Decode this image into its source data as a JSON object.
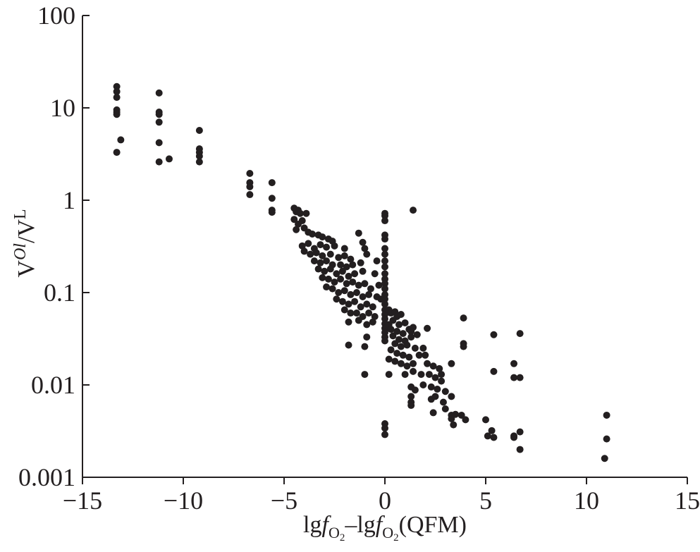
{
  "chart_data": {
    "type": "scatter",
    "title": "",
    "xlabel": "lgfO2–lgfO2(QFM)",
    "xlabel_parts": {
      "a": "lg",
      "f1": "f",
      "sub1": "O",
      "sub1n": "2",
      "dash": "–lg",
      "f2": "f",
      "sub2": "O",
      "sub2n": "2",
      "tail": "(QFM)"
    },
    "ylabel": "VOl/VL",
    "ylabel_parts": {
      "v1": "V",
      "sup1": "Ol",
      "slash": "/V",
      "sup2": "L"
    },
    "xlim": [
      -15,
      15
    ],
    "ylim": [
      0.001,
      100
    ],
    "yscale": "log",
    "grid": false,
    "legend": "none",
    "marker_color": "#231f20",
    "x_ticks": [
      -15,
      -10,
      -5,
      0,
      5,
      10,
      15
    ],
    "x_tick_labels": [
      "−15",
      "−10",
      "−5",
      "0",
      "5",
      "10",
      "15"
    ],
    "y_ticks": [
      0.001,
      0.01,
      0.1,
      1,
      10,
      100
    ],
    "y_tick_labels": [
      "0.001",
      "0.01",
      "0.1",
      "1",
      "10",
      "100"
    ],
    "points": [
      [
        -13.3,
        17.0
      ],
      [
        -13.3,
        15.0
      ],
      [
        -13.3,
        13.0
      ],
      [
        -13.3,
        9.5
      ],
      [
        -13.3,
        9.0
      ],
      [
        -13.3,
        8.5
      ],
      [
        -13.1,
        4.5
      ],
      [
        -13.3,
        3.3
      ],
      [
        -11.2,
        14.5
      ],
      [
        -11.2,
        9.0
      ],
      [
        -11.2,
        8.5
      ],
      [
        -11.2,
        7.0
      ],
      [
        -11.2,
        4.2
      ],
      [
        -11.2,
        2.6
      ],
      [
        -10.7,
        2.8
      ],
      [
        -9.2,
        5.7
      ],
      [
        -9.2,
        3.6
      ],
      [
        -9.2,
        3.3
      ],
      [
        -9.2,
        3.0
      ],
      [
        -9.2,
        2.6
      ],
      [
        -6.7,
        1.95
      ],
      [
        -6.7,
        1.55
      ],
      [
        -6.7,
        1.4
      ],
      [
        -6.7,
        1.15
      ],
      [
        -5.6,
        1.55
      ],
      [
        -5.6,
        1.05
      ],
      [
        -5.6,
        0.78
      ],
      [
        -5.6,
        0.74
      ],
      [
        -4.5,
        0.82
      ],
      [
        -4.4,
        0.75
      ],
      [
        -4.3,
        0.78
      ],
      [
        -4.2,
        0.72
      ],
      [
        -3.9,
        0.72
      ],
      [
        -4.5,
        0.62
      ],
      [
        -4.3,
        0.55
      ],
      [
        -4.1,
        0.6
      ],
      [
        -3.8,
        0.45
      ],
      [
        -4.4,
        0.48
      ],
      [
        -4.0,
        0.5
      ],
      [
        -3.6,
        0.43
      ],
      [
        -3.3,
        0.42
      ],
      [
        -3.1,
        0.4
      ],
      [
        -2.8,
        0.38
      ],
      [
        -2.6,
        0.36
      ],
      [
        -4.1,
        0.32
      ],
      [
        -3.8,
        0.34
      ],
      [
        -3.5,
        0.3
      ],
      [
        -3.2,
        0.33
      ],
      [
        -2.9,
        0.31
      ],
      [
        -2.5,
        0.32
      ],
      [
        -4.0,
        0.28
      ],
      [
        -3.7,
        0.26
      ],
      [
        -3.4,
        0.27
      ],
      [
        -3.1,
        0.25
      ],
      [
        -2.7,
        0.26
      ],
      [
        -2.3,
        0.24
      ],
      [
        -2.0,
        0.25
      ],
      [
        -1.7,
        0.23
      ],
      [
        -3.5,
        0.22
      ],
      [
        -3.2,
        0.21
      ],
      [
        -2.9,
        0.22
      ],
      [
        -2.6,
        0.2
      ],
      [
        -2.2,
        0.2
      ],
      [
        -1.9,
        0.19
      ],
      [
        -1.6,
        0.2
      ],
      [
        -1.2,
        0.21
      ],
      [
        -3.3,
        0.18
      ],
      [
        -3.0,
        0.17
      ],
      [
        -2.7,
        0.18
      ],
      [
        -2.4,
        0.16
      ],
      [
        -2.1,
        0.17
      ],
      [
        -1.8,
        0.15
      ],
      [
        -1.5,
        0.16
      ],
      [
        -1.1,
        0.17
      ],
      [
        -3.1,
        0.145
      ],
      [
        -2.8,
        0.14
      ],
      [
        -2.5,
        0.13
      ],
      [
        -2.2,
        0.14
      ],
      [
        -1.9,
        0.125
      ],
      [
        -1.6,
        0.13
      ],
      [
        -1.3,
        0.12
      ],
      [
        -1.0,
        0.125
      ],
      [
        -2.9,
        0.115
      ],
      [
        -2.6,
        0.11
      ],
      [
        -2.3,
        0.1
      ],
      [
        -2.0,
        0.105
      ],
      [
        -1.7,
        0.095
      ],
      [
        -1.4,
        0.1
      ],
      [
        -1.1,
        0.09
      ],
      [
        -0.8,
        0.095
      ],
      [
        -2.4,
        0.085
      ],
      [
        -2.1,
        0.08
      ],
      [
        -1.8,
        0.075
      ],
      [
        -1.5,
        0.08
      ],
      [
        -1.2,
        0.07
      ],
      [
        -0.9,
        0.075
      ],
      [
        -0.6,
        0.07
      ],
      [
        -2.0,
        0.065
      ],
      [
        -1.7,
        0.06
      ],
      [
        -1.4,
        0.06
      ],
      [
        -1.1,
        0.055
      ],
      [
        -0.8,
        0.06
      ],
      [
        -0.5,
        0.055
      ],
      [
        -1.8,
        0.048
      ],
      [
        -1.3,
        0.05
      ],
      [
        -0.9,
        0.045
      ],
      [
        -0.6,
        0.048
      ],
      [
        -1.3,
        0.44
      ],
      [
        -1.1,
        0.35
      ],
      [
        -1.0,
        0.3
      ],
      [
        -0.9,
        0.26
      ],
      [
        -2.0,
        0.3
      ],
      [
        -0.4,
        0.22
      ],
      [
        -0.5,
        0.16
      ],
      [
        -0.3,
        0.12
      ],
      [
        -0.7,
        0.11
      ],
      [
        -1.8,
        0.027
      ],
      [
        -1.0,
        0.026
      ],
      [
        -1.0,
        0.013
      ],
      [
        -0.9,
        0.033
      ],
      [
        0.0,
        0.72
      ],
      [
        0.0,
        0.68
      ],
      [
        0.0,
        0.6
      ],
      [
        0.0,
        0.42
      ],
      [
        0.0,
        0.38
      ],
      [
        0.0,
        0.3
      ],
      [
        0.0,
        0.26
      ],
      [
        0.0,
        0.22
      ],
      [
        0.0,
        0.19
      ],
      [
        0.0,
        0.16
      ],
      [
        0.0,
        0.14
      ],
      [
        0.0,
        0.125
      ],
      [
        0.0,
        0.11
      ],
      [
        0.0,
        0.095
      ],
      [
        0.0,
        0.085
      ],
      [
        0.0,
        0.075
      ],
      [
        0.0,
        0.065
      ],
      [
        0.0,
        0.058
      ],
      [
        0.0,
        0.052
      ],
      [
        0.0,
        0.046
      ],
      [
        0.0,
        0.041
      ],
      [
        0.0,
        0.037
      ],
      [
        0.0,
        0.033
      ],
      [
        0.0,
        0.03
      ],
      [
        0.0,
        0.0038
      ],
      [
        0.0,
        0.0034
      ],
      [
        0.0,
        0.0029
      ],
      [
        -0.4,
        0.09
      ],
      [
        -0.2,
        0.085
      ],
      [
        0.2,
        0.065
      ],
      [
        0.3,
        0.06
      ],
      [
        0.5,
        0.062
      ],
      [
        0.6,
        0.055
      ],
      [
        0.8,
        0.058
      ],
      [
        0.4,
        0.05
      ],
      [
        0.2,
        0.045
      ],
      [
        0.7,
        0.045
      ],
      [
        1.0,
        0.047
      ],
      [
        0.3,
        0.04
      ],
      [
        0.6,
        0.038
      ],
      [
        0.9,
        0.036
      ],
      [
        1.2,
        0.04
      ],
      [
        1.4,
        0.042
      ],
      [
        0.4,
        0.034
      ],
      [
        0.7,
        0.031
      ],
      [
        1.0,
        0.03
      ],
      [
        1.3,
        0.033
      ],
      [
        1.6,
        0.035
      ],
      [
        0.5,
        0.028
      ],
      [
        0.8,
        0.026
      ],
      [
        1.1,
        0.027
      ],
      [
        1.5,
        0.025
      ],
      [
        1.9,
        0.025
      ],
      [
        0.3,
        0.024
      ],
      [
        0.6,
        0.022
      ],
      [
        0.9,
        0.021
      ],
      [
        1.2,
        0.02
      ],
      [
        1.7,
        0.021
      ],
      [
        2.0,
        0.021
      ],
      [
        0.2,
        0.019
      ],
      [
        0.5,
        0.018
      ],
      [
        0.8,
        0.017
      ],
      [
        1.1,
        0.016
      ],
      [
        1.4,
        0.017
      ],
      [
        2.1,
        0.017
      ],
      [
        2.4,
        0.016
      ],
      [
        2.7,
        0.015
      ],
      [
        0.2,
        0.013
      ],
      [
        1.0,
        0.013
      ],
      [
        1.4,
        0.014
      ],
      [
        1.8,
        0.013
      ],
      [
        2.2,
        0.013
      ],
      [
        2.5,
        0.012
      ],
      [
        2.8,
        0.013
      ],
      [
        3.3,
        0.017
      ],
      [
        2.8,
        0.011
      ],
      [
        1.3,
        0.0095
      ],
      [
        1.5,
        0.0088
      ],
      [
        1.9,
        0.01
      ],
      [
        2.3,
        0.0095
      ],
      [
        2.6,
        0.009
      ],
      [
        3.0,
        0.0085
      ],
      [
        3.3,
        0.0075
      ],
      [
        1.3,
        0.0075
      ],
      [
        1.3,
        0.0065
      ],
      [
        1.3,
        0.006
      ],
      [
        2.3,
        0.007
      ],
      [
        2.5,
        0.0075
      ],
      [
        2.9,
        0.0065
      ],
      [
        3.0,
        0.0055
      ],
      [
        2.4,
        0.005
      ],
      [
        3.5,
        0.0048
      ],
      [
        3.3,
        0.0047
      ],
      [
        3.8,
        0.0047
      ],
      [
        3.3,
        0.0043
      ],
      [
        4.0,
        0.0042
      ],
      [
        3.4,
        0.0037
      ],
      [
        1.4,
        0.78
      ],
      [
        3.9,
        0.053
      ],
      [
        3.9,
        0.028
      ],
      [
        3.9,
        0.026
      ],
      [
        2.1,
        0.041
      ],
      [
        1.3,
        0.038
      ],
      [
        5.4,
        0.035
      ],
      [
        5.4,
        0.014
      ],
      [
        5.0,
        0.0042
      ],
      [
        5.3,
        0.0032
      ],
      [
        5.1,
        0.0028
      ],
      [
        5.4,
        0.0027
      ],
      [
        6.4,
        0.017
      ],
      [
        6.4,
        0.012
      ],
      [
        6.7,
        0.012
      ],
      [
        6.7,
        0.036
      ],
      [
        6.7,
        0.0031
      ],
      [
        6.4,
        0.0028
      ],
      [
        6.4,
        0.0027
      ],
      [
        6.7,
        0.002
      ],
      [
        11.0,
        0.0047
      ],
      [
        11.0,
        0.0026
      ],
      [
        10.9,
        0.0016
      ]
    ]
  }
}
